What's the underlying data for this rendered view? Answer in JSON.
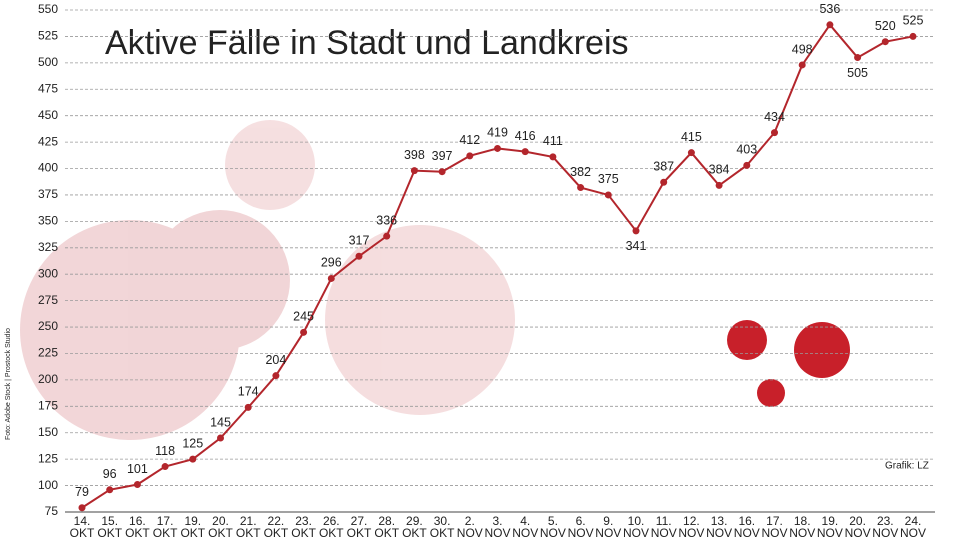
{
  "chart_data": {
    "type": "line",
    "title": "Aktive Fälle in Stadt und Landkreis",
    "credit": "Grafik: LZ",
    "photo_credit": "Foto: Adobe Stock | Prostock Studio",
    "categories": [
      [
        "14.",
        "OKT"
      ],
      [
        "15.",
        "OKT"
      ],
      [
        "16.",
        "OKT"
      ],
      [
        "17.",
        "OKT"
      ],
      [
        "19.",
        "OKT"
      ],
      [
        "20.",
        "OKT"
      ],
      [
        "21.",
        "OKT"
      ],
      [
        "22.",
        "OKT"
      ],
      [
        "23.",
        "OKT"
      ],
      [
        "26.",
        "OKT"
      ],
      [
        "27.",
        "OKT"
      ],
      [
        "28.",
        "OKT"
      ],
      [
        "29.",
        "OKT"
      ],
      [
        "30.",
        "OKT"
      ],
      [
        "2.",
        "NOV"
      ],
      [
        "3.",
        "NOV"
      ],
      [
        "4.",
        "NOV"
      ],
      [
        "5.",
        "NOV"
      ],
      [
        "6.",
        "NOV"
      ],
      [
        "9.",
        "NOV"
      ],
      [
        "10.",
        "NOV"
      ],
      [
        "11.",
        "NOV"
      ],
      [
        "12.",
        "NOV"
      ],
      [
        "13.",
        "NOV"
      ],
      [
        "16.",
        "NOV"
      ],
      [
        "17.",
        "NOV"
      ],
      [
        "18.",
        "NOV"
      ],
      [
        "19.",
        "NOV"
      ],
      [
        "20.",
        "NOV"
      ],
      [
        "23.",
        "NOV"
      ],
      [
        "24.",
        "NOV"
      ]
    ],
    "values": [
      79,
      96,
      101,
      118,
      125,
      145,
      174,
      204,
      245,
      296,
      317,
      336,
      398,
      397,
      412,
      419,
      416,
      411,
      382,
      375,
      341,
      387,
      415,
      384,
      403,
      434,
      498,
      536,
      505,
      520,
      525
    ],
    "color": "#b3262c",
    "ylim": [
      75,
      550
    ],
    "yticks": [
      75,
      100,
      125,
      150,
      175,
      200,
      225,
      250,
      275,
      300,
      325,
      350,
      375,
      400,
      425,
      450,
      475,
      500,
      525,
      550
    ],
    "grid": true
  }
}
